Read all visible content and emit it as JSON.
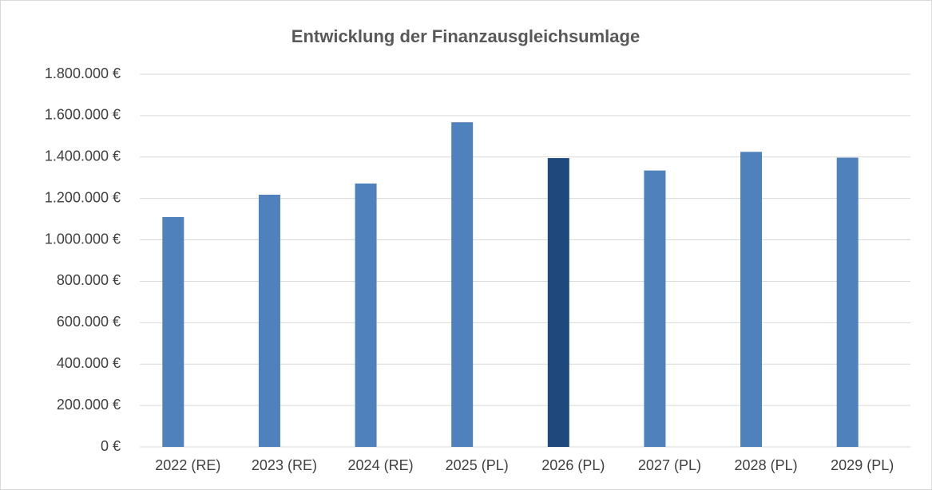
{
  "chart_data": {
    "type": "bar",
    "title": "Entwicklung der Finanzausgleichsumlage",
    "categories": [
      "2022 (RE)",
      "2023 (RE)",
      "2024 (RE)",
      "2025 (PL)",
      "2026 (PL)",
      "2027 (PL)",
      "2028 (PL)",
      "2029 (PL)"
    ],
    "values": [
      1110000,
      1218000,
      1272000,
      1568000,
      1395000,
      1335000,
      1425000,
      1397000
    ],
    "colors": [
      "#4f81bd",
      "#4f81bd",
      "#4f81bd",
      "#4f81bd",
      "#1f497d",
      "#4f81bd",
      "#4f81bd",
      "#4f81bd"
    ],
    "ylim": [
      0,
      1800000
    ],
    "yticks": [
      {
        "value": 0,
        "label": "0 €"
      },
      {
        "value": 200000,
        "label": "200.000 €"
      },
      {
        "value": 400000,
        "label": "400.000 €"
      },
      {
        "value": 600000,
        "label": "600.000 €"
      },
      {
        "value": 800000,
        "label": "800.000 €"
      },
      {
        "value": 1000000,
        "label": "1.000.000 €"
      },
      {
        "value": 1200000,
        "label": "1.200.000 €"
      },
      {
        "value": 1400000,
        "label": "1.400.000 €"
      },
      {
        "value": 1600000,
        "label": "1.600.000 €"
      },
      {
        "value": 1800000,
        "label": "1.800.000 €"
      }
    ],
    "grid": true
  }
}
